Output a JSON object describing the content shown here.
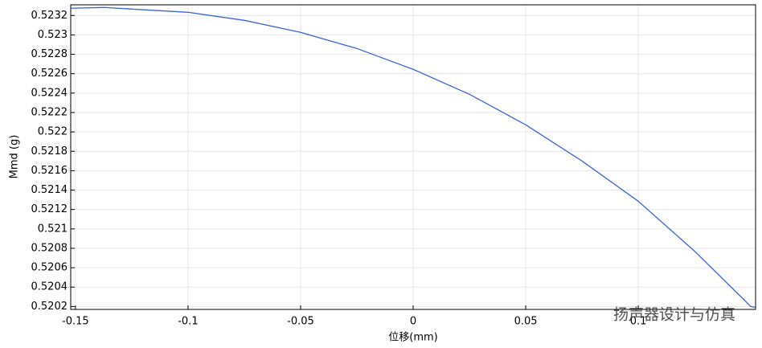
{
  "chart_data": {
    "type": "line",
    "xlabel": "位移(mm)",
    "ylabel": "Mmd (g)",
    "watermark": "扬声器设计与仿真",
    "x": [
      -0.152,
      -0.137,
      -0.125,
      -0.1,
      -0.075,
      -0.05,
      -0.025,
      0,
      0.025,
      0.05,
      0.075,
      0.1,
      0.125,
      0.15,
      0.152
    ],
    "series": [
      {
        "color": "#3c64dc",
        "values": [
          0.523275,
          0.523283,
          0.523266,
          0.523233,
          0.52315,
          0.523026,
          0.52286,
          0.522645,
          0.522388,
          0.522073,
          0.5217,
          0.521285,
          0.520771,
          0.5202,
          0.520192
        ]
      }
    ],
    "xlim": [
      -0.1521,
      0.1521
    ],
    "ylim": [
      0.52017,
      0.52331
    ],
    "xticks": [
      -0.15,
      -0.1,
      -0.05,
      0,
      0.05,
      0.1
    ],
    "yticks": [
      0.5202,
      0.5204,
      0.5206,
      0.5208,
      0.521,
      0.5212,
      0.5214,
      0.5216,
      0.5218,
      0.522,
      0.5222,
      0.5224,
      0.5226,
      0.5228,
      0.523,
      0.5232
    ],
    "grid": true
  }
}
